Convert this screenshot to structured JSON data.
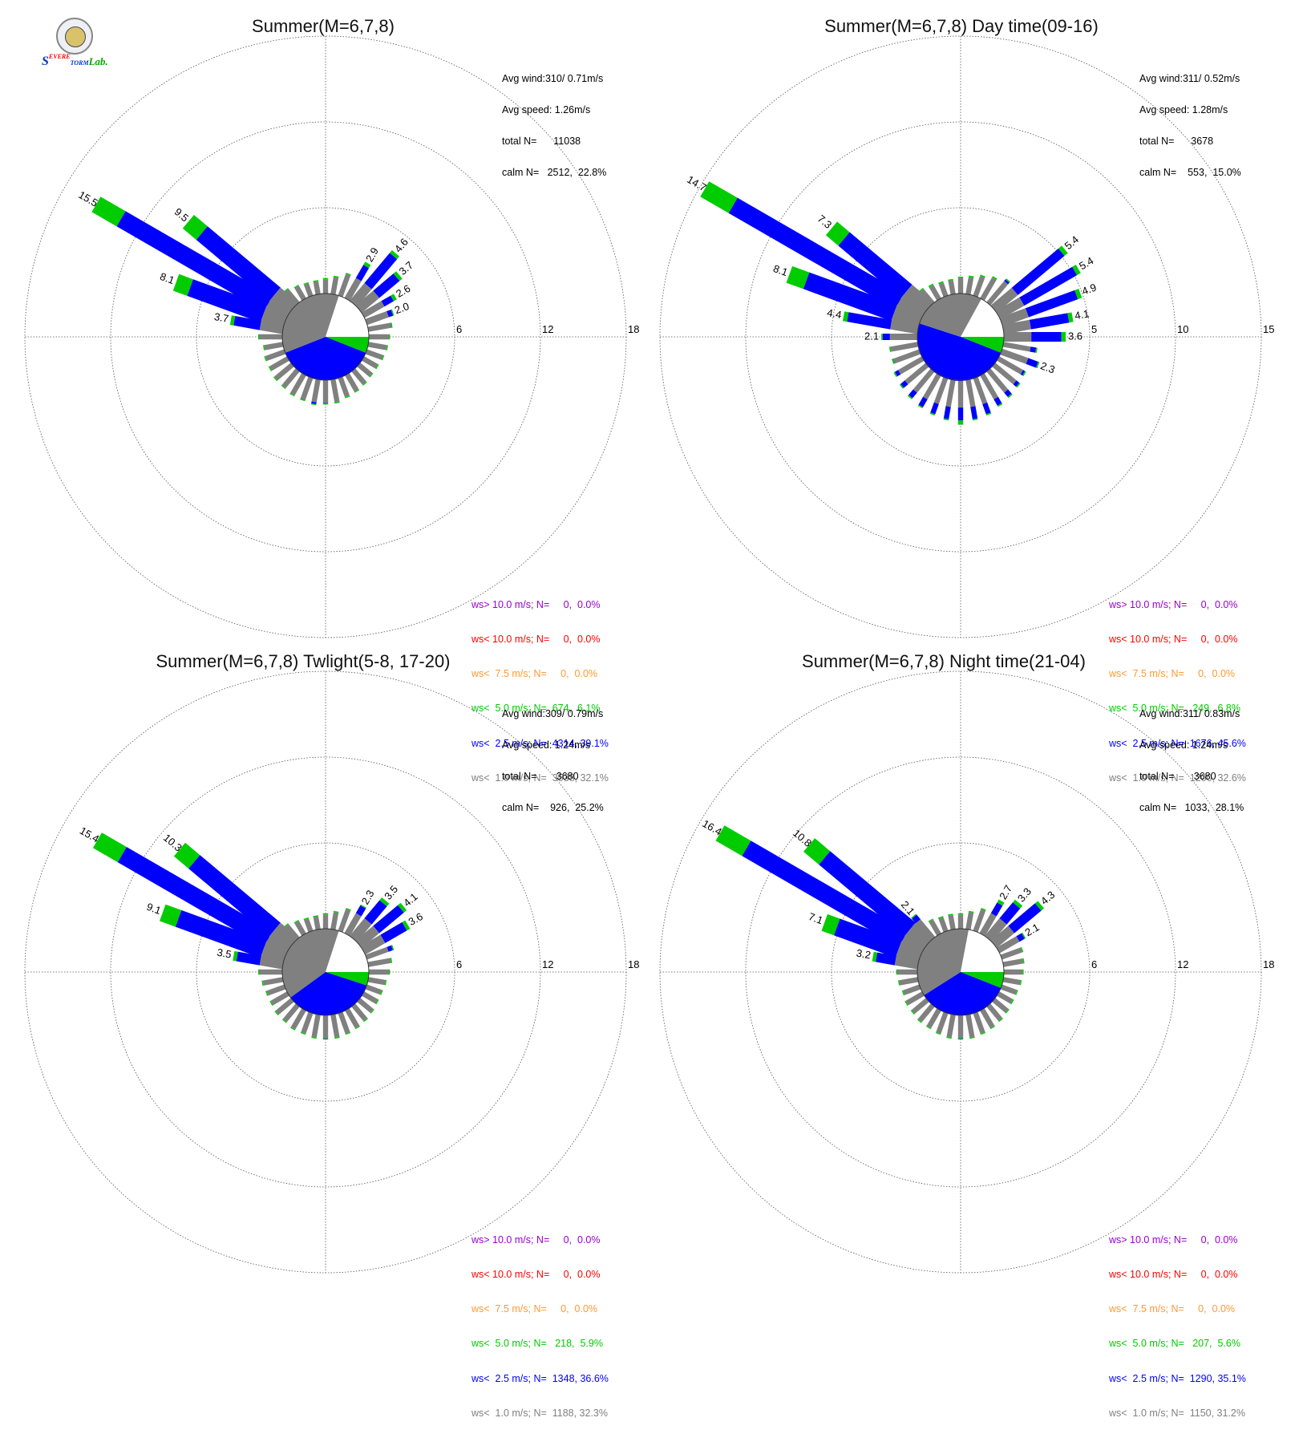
{
  "colors": {
    "gt10": "#9900cc",
    "lt10": "#ff0000",
    "lt75": "#ff9933",
    "lt50": "#00cc00",
    "lt25": "#0000ff",
    "lt10ms": "#808080",
    "grid": "#555555"
  },
  "logo": {
    "text_s": "S",
    "text_evere": "EVERE",
    "text_torm": "TORM",
    "text_lab": "Lab.",
    "icon": "university-seal-icon"
  },
  "chart_data": [
    {
      "type": "wind-rose",
      "title": "Summer(M=6,7,8)",
      "rlim": [
        0,
        18
      ],
      "ring_labels": [
        "6",
        "12",
        "18"
      ],
      "stats": [
        "Avg wind:310/ 0.71m/s",
        "Avg speed: 1.26m/s",
        "total N=      11038",
        "calm N=   2512,  22.8%"
      ],
      "legend": [
        {
          "text": "ws> 10.0 m/s; N=     0,  0.0%",
          "color": "#9900cc"
        },
        {
          "text": "ws< 10.0 m/s; N=     0,  0.0%",
          "color": "#ff0000"
        },
        {
          "text": "ws<  7.5 m/s; N=     0,  0.0%",
          "color": "#ff9933"
        },
        {
          "text": "ws<  5.0 m/s; N=  674,  6.1%",
          "color": "#00cc00"
        },
        {
          "text": "ws<  2.5 m/s; N=  4314, 39.1%",
          "color": "#0000ff"
        },
        {
          "text": "ws<  1.0 m/s; N=  3538, 32.1%",
          "color": "#808080"
        }
      ],
      "calm_pie": {
        "gray": 0.36,
        "white": 0.2,
        "green": 0.06,
        "blue": 0.38
      },
      "bars": [
        {
          "dir": 300,
          "total": 15.5,
          "label": "15.5"
        },
        {
          "dir": 310,
          "total": 9.5,
          "label": "9.5"
        },
        {
          "dir": 290,
          "total": 8.1,
          "label": "8.1"
        },
        {
          "dir": 280,
          "total": 3.7,
          "label": "3.7"
        },
        {
          "dir": 30,
          "total": 2.9,
          "label": "2.9"
        },
        {
          "dir": 40,
          "total": 4.6,
          "label": "4.6"
        },
        {
          "dir": 50,
          "total": 3.7,
          "label": "3.7"
        },
        {
          "dir": 60,
          "total": 2.6,
          "label": "2.6"
        },
        {
          "dir": 70,
          "total": 2.0,
          "label": "2.0"
        }
      ],
      "small_dirs": [
        0,
        10,
        20,
        80,
        90,
        100,
        110,
        120,
        130,
        140,
        150,
        160,
        170,
        180,
        190,
        200,
        210,
        220,
        230,
        240,
        250,
        260,
        270,
        320,
        330,
        340,
        350
      ],
      "small_vals": [
        1.0,
        1.2,
        1.6,
        1.7,
        1.4,
        1.3,
        1.2,
        1.1,
        1.1,
        1.2,
        1.3,
        1.4,
        1.6,
        1.7,
        1.8,
        1.7,
        1.6,
        1.5,
        1.5,
        1.4,
        1.4,
        1.3,
        1.6,
        1.2,
        1.0,
        0.9,
        0.9
      ]
    },
    {
      "type": "wind-rose",
      "title": "Summer(M=6,7,8) Day time(09-16)",
      "rlim": [
        0,
        15
      ],
      "ring_labels": [
        "5",
        "10",
        "15"
      ],
      "stats": [
        "Avg wind:311/ 0.52m/s",
        "Avg speed: 1.28m/s",
        "total N=      3678",
        "calm N=    553,  15.0%"
      ],
      "legend": [
        {
          "text": "ws> 10.0 m/s; N=     0,  0.0%",
          "color": "#9900cc"
        },
        {
          "text": "ws< 10.0 m/s; N=     0,  0.0%",
          "color": "#ff0000"
        },
        {
          "text": "ws<  7.5 m/s; N=     0,  0.0%",
          "color": "#ff9933"
        },
        {
          "text": "ws<  5.0 m/s; N=   249,  6.8%",
          "color": "#00cc00"
        },
        {
          "text": "ws<  2.5 m/s; N=  1676, 45.6%",
          "color": "#0000ff"
        },
        {
          "text": "ws<  1.0 m/s; N=  1200, 32.6%",
          "color": "#808080"
        }
      ],
      "calm_pie": {
        "gray": 0.28,
        "white": 0.17,
        "green": 0.06,
        "blue": 0.49
      },
      "bars": [
        {
          "dir": 300,
          "total": 14.7,
          "label": "14.7"
        },
        {
          "dir": 310,
          "total": 7.3,
          "label": "7.3"
        },
        {
          "dir": 290,
          "total": 8.1,
          "label": "8.1"
        },
        {
          "dir": 280,
          "total": 4.4,
          "label": "4.4"
        },
        {
          "dir": 270,
          "total": 2.1,
          "label": "2.1"
        },
        {
          "dir": 50,
          "total": 5.4,
          "label": "5.4"
        },
        {
          "dir": 60,
          "total": 5.4,
          "label": "5.4"
        },
        {
          "dir": 70,
          "total": 4.9,
          "label": "4.9"
        },
        {
          "dir": 80,
          "total": 4.1,
          "label": "4.1"
        },
        {
          "dir": 90,
          "total": 3.6,
          "label": "3.6"
        },
        {
          "dir": 110,
          "total": 2.3,
          "label": "2.3"
        }
      ],
      "small_dirs": [
        0,
        10,
        20,
        30,
        40,
        100,
        120,
        130,
        140,
        150,
        160,
        170,
        180,
        190,
        200,
        210,
        220,
        230,
        240,
        250,
        260,
        320,
        330,
        340,
        350
      ],
      "small_vals": [
        0.9,
        1.0,
        1.2,
        1.4,
        1.8,
        2.0,
        1.8,
        1.9,
        2.0,
        2.1,
        2.3,
        2.4,
        2.6,
        2.4,
        2.3,
        2.2,
        2.1,
        2.0,
        1.9,
        1.7,
        1.6,
        1.0,
        0.9,
        0.8,
        0.8
      ]
    },
    {
      "type": "wind-rose",
      "title": "Summer(M=6,7,8) Twlight(5-8, 17-20)",
      "rlim": [
        0,
        18
      ],
      "ring_labels": [
        "6",
        "12",
        "18"
      ],
      "stats": [
        "Avg wind:309/ 0.79m/s",
        "Avg speed: 1.24m/s",
        "total N=       3680",
        "calm N=    926,  25.2%"
      ],
      "legend": [
        {
          "text": "ws> 10.0 m/s; N=     0,  0.0%",
          "color": "#9900cc"
        },
        {
          "text": "ws< 10.0 m/s; N=     0,  0.0%",
          "color": "#ff0000"
        },
        {
          "text": "ws<  7.5 m/s; N=     0,  0.0%",
          "color": "#ff9933"
        },
        {
          "text": "ws<  5.0 m/s; N=   218,  5.9%",
          "color": "#00cc00"
        },
        {
          "text": "ws<  2.5 m/s; N=  1348, 36.6%",
          "color": "#0000ff"
        },
        {
          "text": "ws<  1.0 m/s; N=  1188, 32.3%",
          "color": "#808080"
        }
      ],
      "calm_pie": {
        "gray": 0.4,
        "white": 0.2,
        "green": 0.05,
        "blue": 0.35
      },
      "bars": [
        {
          "dir": 300,
          "total": 15.4,
          "label": "15.4"
        },
        {
          "dir": 310,
          "total": 10.3,
          "label": "10.3"
        },
        {
          "dir": 290,
          "total": 9.1,
          "label": "9.1"
        },
        {
          "dir": 280,
          "total": 3.5,
          "label": "3.5"
        },
        {
          "dir": 30,
          "total": 2.3,
          "label": "2.3"
        },
        {
          "dir": 40,
          "total": 3.5,
          "label": "3.5"
        },
        {
          "dir": 50,
          "total": 4.1,
          "label": "4.1"
        },
        {
          "dir": 60,
          "total": 3.6,
          "label": "3.6"
        }
      ],
      "small_dirs": [
        0,
        10,
        20,
        70,
        80,
        90,
        100,
        110,
        120,
        130,
        140,
        150,
        160,
        170,
        180,
        190,
        200,
        210,
        220,
        230,
        240,
        250,
        260,
        270,
        320,
        330,
        340,
        350
      ],
      "small_vals": [
        1.0,
        1.2,
        1.6,
        2.0,
        1.6,
        1.4,
        1.2,
        1.1,
        1.1,
        1.2,
        1.3,
        1.4,
        1.5,
        1.6,
        1.7,
        1.6,
        1.5,
        1.5,
        1.4,
        1.4,
        1.3,
        1.3,
        1.4,
        1.6,
        1.2,
        1.0,
        0.9,
        0.9
      ]
    },
    {
      "type": "wind-rose",
      "title": "Summer(M=6,7,8) Night time(21-04)",
      "rlim": [
        0,
        18
      ],
      "ring_labels": [
        "6",
        "12",
        "18"
      ],
      "stats": [
        "Avg wind:311/ 0.83m/s",
        "Avg speed: 1.24m/s",
        "total N=       3680",
        "calm N=   1033,  28.1%"
      ],
      "legend": [
        {
          "text": "ws> 10.0 m/s; N=     0,  0.0%",
          "color": "#9900cc"
        },
        {
          "text": "ws< 10.0 m/s; N=     0,  0.0%",
          "color": "#ff0000"
        },
        {
          "text": "ws<  7.5 m/s; N=     0,  0.0%",
          "color": "#ff9933"
        },
        {
          "text": "ws<  5.0 m/s; N=   207,  5.6%",
          "color": "#00cc00"
        },
        {
          "text": "ws<  2.5 m/s; N=  1290, 35.1%",
          "color": "#0000ff"
        },
        {
          "text": "ws<  1.0 m/s; N=  1150, 31.2%",
          "color": "#808080"
        }
      ],
      "calm_pie": {
        "gray": 0.37,
        "white": 0.22,
        "green": 0.06,
        "blue": 0.35
      },
      "bars": [
        {
          "dir": 300,
          "total": 16.4,
          "label": "16.4"
        },
        {
          "dir": 310,
          "total": 10.8,
          "label": "10.8"
        },
        {
          "dir": 290,
          "total": 7.1,
          "label": "7.1"
        },
        {
          "dir": 280,
          "total": 3.2,
          "label": "3.2"
        },
        {
          "dir": 320,
          "total": 2.1,
          "label": "2.1"
        },
        {
          "dir": 30,
          "total": 2.7,
          "label": "2.7"
        },
        {
          "dir": 40,
          "total": 3.3,
          "label": "3.3"
        },
        {
          "dir": 50,
          "total": 4.3,
          "label": "4.3"
        },
        {
          "dir": 60,
          "total": 2.1,
          "label": "2.1"
        }
      ],
      "small_dirs": [
        0,
        10,
        20,
        70,
        80,
        90,
        100,
        110,
        120,
        130,
        140,
        150,
        160,
        170,
        180,
        190,
        200,
        210,
        220,
        230,
        240,
        250,
        260,
        270,
        330,
        340,
        350
      ],
      "small_vals": [
        1.0,
        1.2,
        1.6,
        1.5,
        1.4,
        1.3,
        1.2,
        1.1,
        1.1,
        1.2,
        1.3,
        1.4,
        1.5,
        1.6,
        1.7,
        1.6,
        1.5,
        1.4,
        1.4,
        1.3,
        1.3,
        1.2,
        1.3,
        1.4,
        1.1,
        1.0,
        1.0
      ]
    }
  ]
}
